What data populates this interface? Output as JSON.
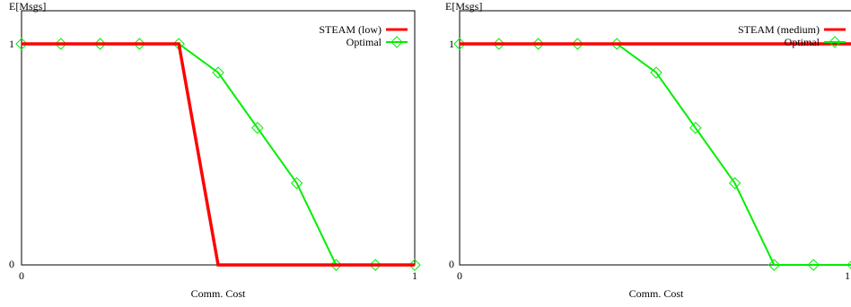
{
  "chart_data": [
    {
      "type": "line",
      "ylabel": "E[Msgs]",
      "xlabel": "Comm. Cost",
      "xlim": [
        0,
        1
      ],
      "ylim": [
        0,
        1
      ],
      "x_ticks": [
        "0",
        "1"
      ],
      "y_ticks": [
        "0",
        "1"
      ],
      "legend_position": "top-right",
      "series": [
        {
          "name": "STEAM (low)",
          "color": "#ff0000",
          "markers": false,
          "x": [
            0,
            0.4,
            0.5,
            1.0
          ],
          "y": [
            1,
            1,
            0,
            0
          ]
        },
        {
          "name": "Optimal",
          "color": "#00ee00",
          "markers": true,
          "marker": "diamond",
          "x": [
            0,
            0.1,
            0.2,
            0.3,
            0.4,
            0.5,
            0.6,
            0.7,
            0.8,
            0.9,
            1.0
          ],
          "y": [
            1,
            1,
            1,
            1,
            1,
            0.87,
            0.62,
            0.37,
            0,
            0,
            0
          ]
        }
      ]
    },
    {
      "type": "line",
      "ylabel": "E[Msgs]",
      "xlabel": "Comm. Cost",
      "xlim": [
        0,
        1
      ],
      "ylim": [
        0,
        1
      ],
      "x_ticks": [
        "0",
        "1"
      ],
      "y_ticks": [
        "0",
        "1"
      ],
      "legend_position": "top-right",
      "series": [
        {
          "name": "STEAM (medium)",
          "color": "#ff0000",
          "markers": false,
          "x": [
            0,
            0.4,
            1.0
          ],
          "y": [
            1,
            1,
            1
          ]
        },
        {
          "name": "Optimal",
          "color": "#00ee00",
          "markers": true,
          "marker": "diamond",
          "x": [
            0,
            0.1,
            0.2,
            0.3,
            0.4,
            0.5,
            0.6,
            0.7,
            0.8,
            0.9,
            1.0
          ],
          "y": [
            1,
            1,
            1,
            1,
            1,
            0.87,
            0.62,
            0.37,
            0,
            0,
            0
          ]
        }
      ]
    }
  ]
}
